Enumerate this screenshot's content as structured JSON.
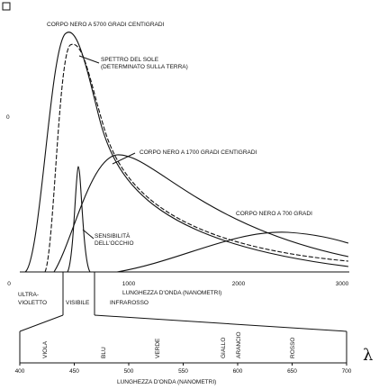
{
  "labels": {
    "bb5700": "CORPO NERO A 5700 GRADI CENTIGRADI",
    "sun1": "SPETTRO DEL SOLE",
    "sun2": "(DETERMINATO SULLA TERRA)",
    "bb1700": "CORPO NERO A 1700 GRADI CENTIGRADI",
    "bb700": "CORPO NERO A 700 GRADI",
    "eye1": "SENSIBILITÀ",
    "eye2": "DELL'OCCHIO",
    "stray0": "0"
  },
  "top_axis": {
    "label": "LUNGHEZZA D'ONDA (NANOMETRI)",
    "ticks": [
      "0",
      "1000",
      "2000",
      "3000"
    ]
  },
  "regions": {
    "uv1": "ULTRA-",
    "uv2": "VIOLETTO",
    "visible": "VISIBILE",
    "ir": "INFRAROSSO"
  },
  "colors": [
    "VIOLA",
    "BLU",
    "VERDE",
    "GIALLO",
    "ARANCIO",
    "ROSSO"
  ],
  "bottom_axis": {
    "label": "LUNGHEZZA D'ONDA (NANOMETRI)",
    "ticks": [
      "400",
      "450",
      "500",
      "550",
      "600",
      "650",
      "700"
    ],
    "symbol": "λ"
  }
}
